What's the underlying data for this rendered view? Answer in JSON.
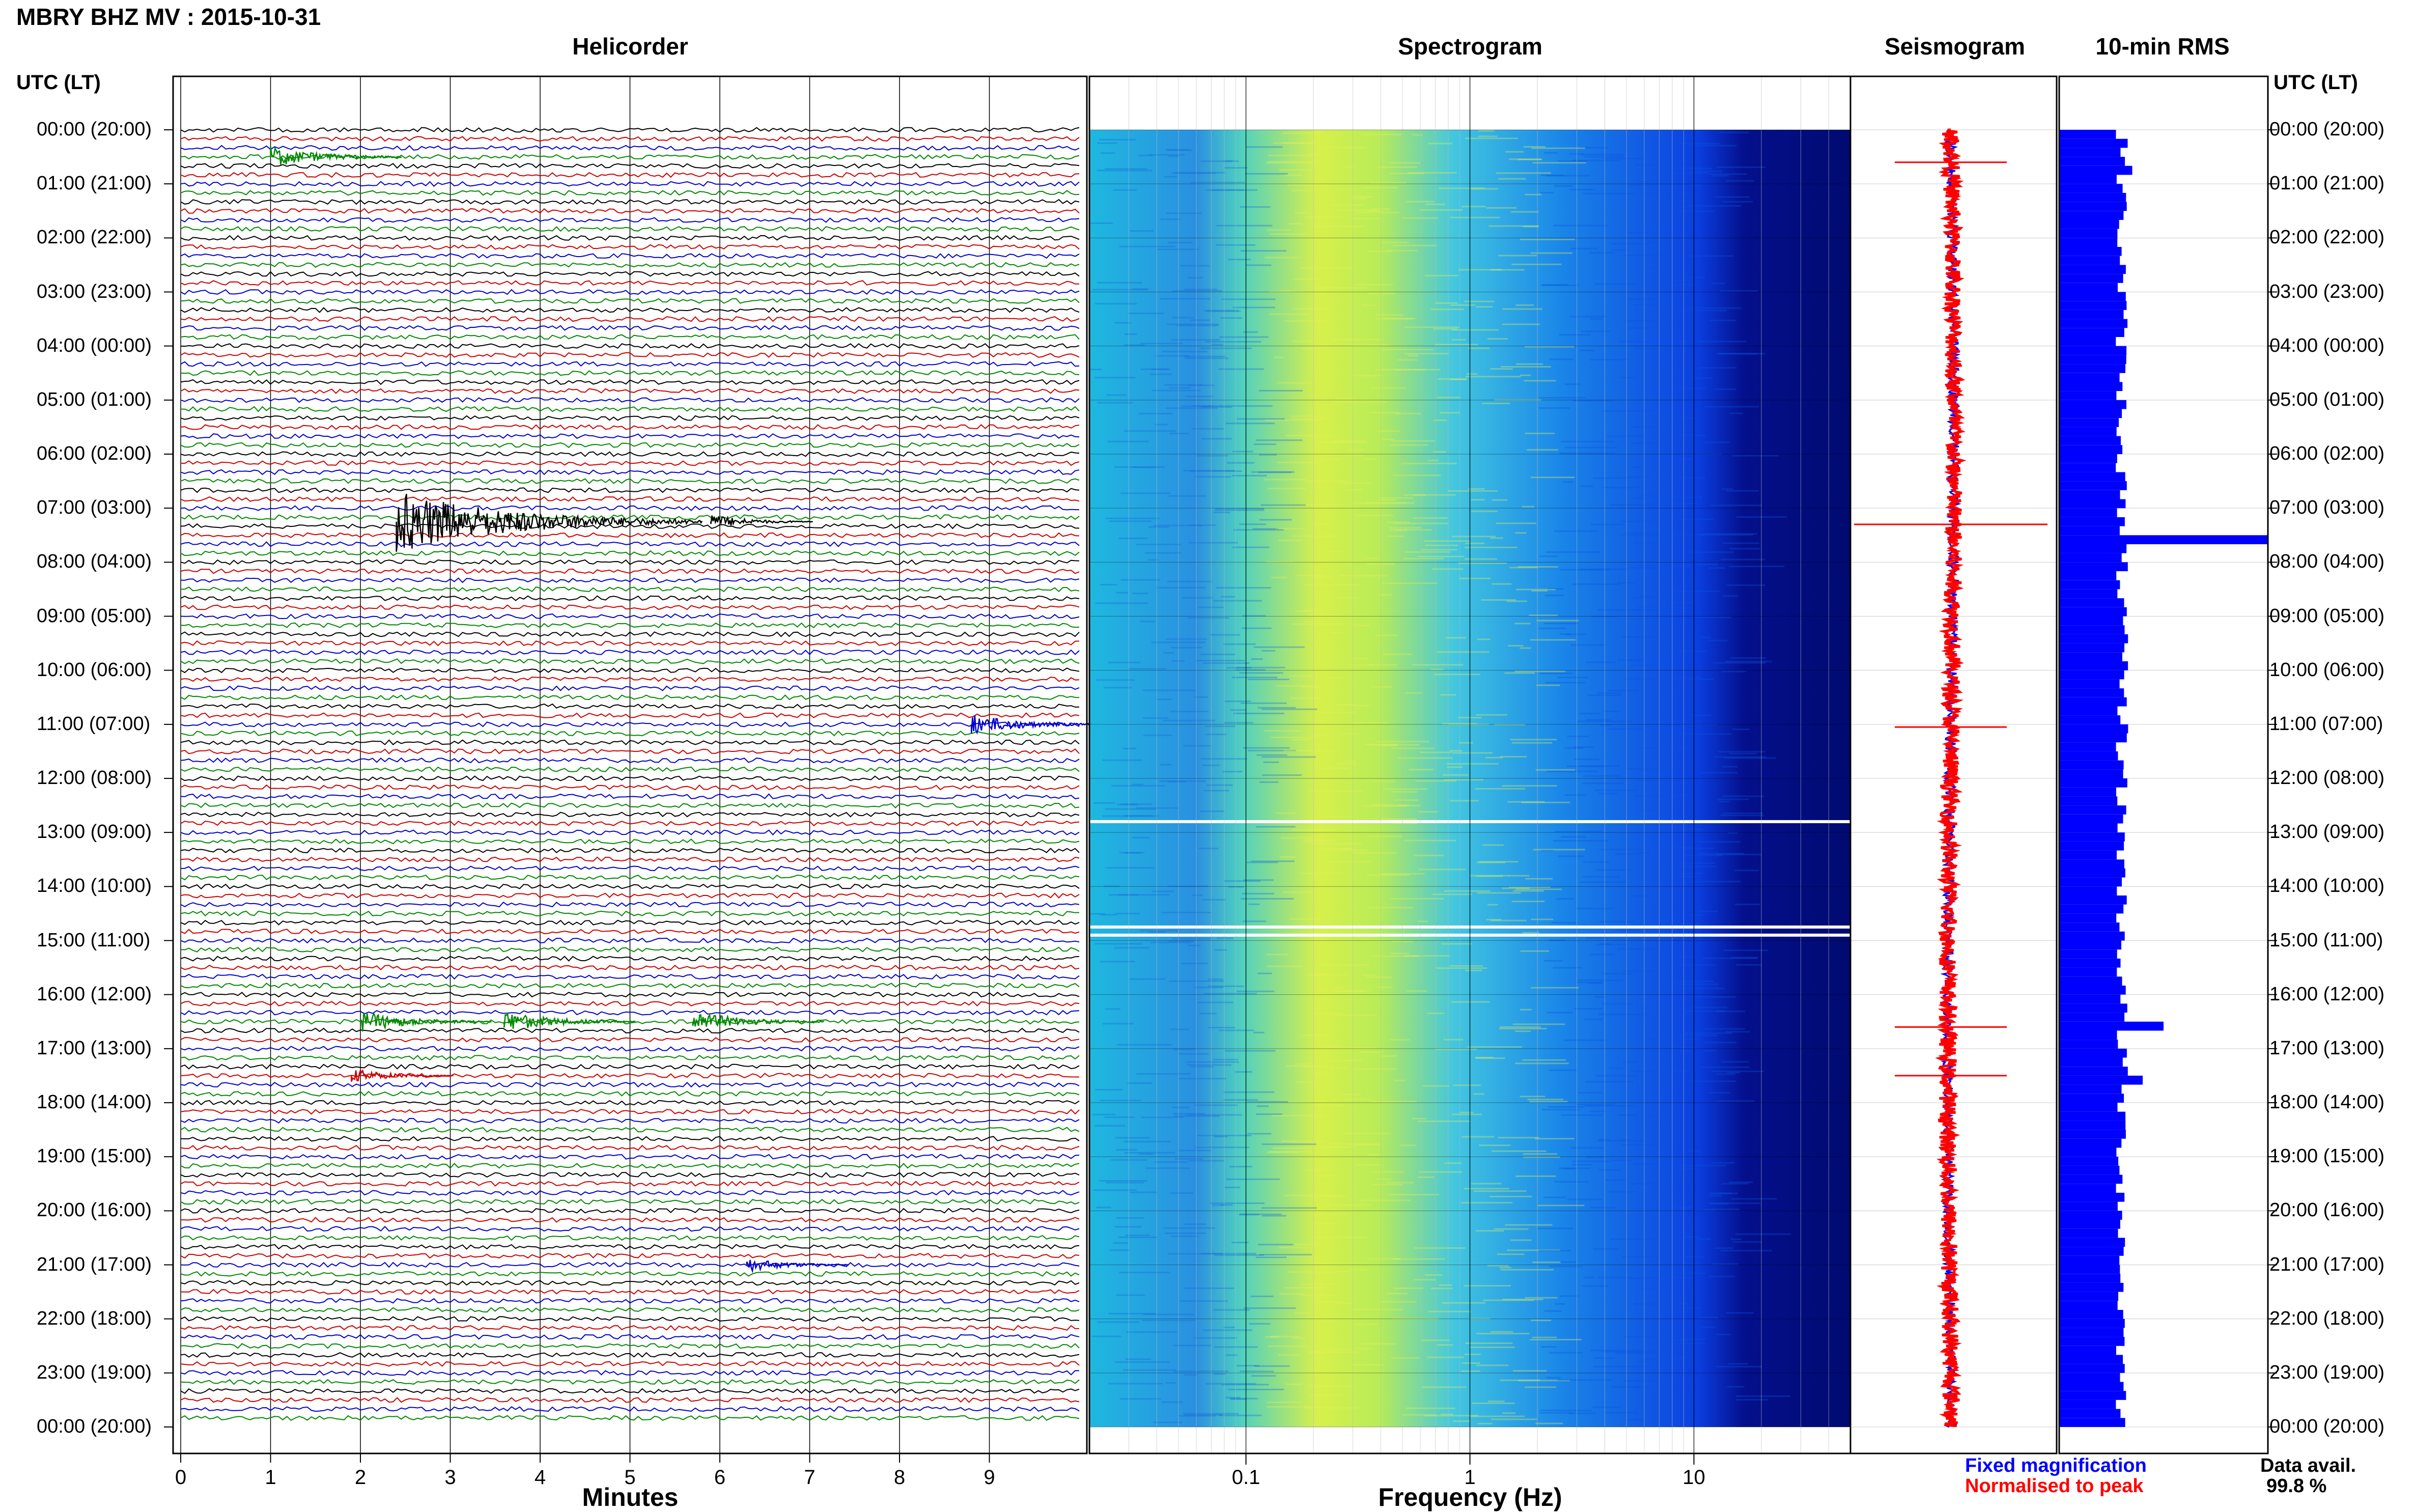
{
  "station_title": "MBRY BHZ MV : 2015-10-31",
  "panels": {
    "helicorder": "Helicorder",
    "spectrogram": "Spectrogram",
    "seismogram": "Seismogram",
    "rms": "10-min RMS"
  },
  "axis_titles": {
    "minutes": "Minutes",
    "frequency": "Frequency (Hz)"
  },
  "utc_header": "UTC (LT)",
  "time_labels": [
    "00:00 (20:00)",
    "01:00 (21:00)",
    "02:00 (22:00)",
    "03:00 (23:00)",
    "04:00 (00:00)",
    "05:00 (01:00)",
    "06:00 (02:00)",
    "07:00 (03:00)",
    "08:00 (04:00)",
    "09:00 (05:00)",
    "10:00 (06:00)",
    "11:00 (07:00)",
    "12:00 (08:00)",
    "13:00 (09:00)",
    "14:00 (10:00)",
    "15:00 (11:00)",
    "16:00 (12:00)",
    "17:00 (13:00)",
    "18:00 (14:00)",
    "19:00 (15:00)",
    "20:00 (16:00)",
    "21:00 (17:00)",
    "22:00 (18:00)",
    "23:00 (19:00)",
    "00:00 (20:00)"
  ],
  "legend": {
    "fixed": "Fixed magnification",
    "normalised": "Normalised to peak"
  },
  "data_availability": {
    "label": "Data avail.",
    "value": "99.8 %"
  },
  "colors": {
    "fixed": "#0000ff",
    "normalised": "#ff0000",
    "trace_cycle": [
      "#000000",
      "#cc0000",
      "#0000cc",
      "#008800"
    ]
  },
  "chart_data": {
    "type": "composite",
    "helicorder": {
      "xlabel": "Minutes",
      "x_ticks": [
        0,
        1,
        2,
        3,
        4,
        5,
        6,
        7,
        8,
        9
      ],
      "xlim": [
        0,
        10
      ],
      "lines_per_hour": 6,
      "hours": 24,
      "events": [
        {
          "hour": 0.5,
          "minute": 1.0,
          "amp": 3
        },
        {
          "hour": 7.25,
          "minute": 2.4,
          "amp": 9
        },
        {
          "hour": 7.25,
          "minute": 5.9,
          "amp": 2
        },
        {
          "hour": 11.0,
          "minute": 8.8,
          "amp": 3
        },
        {
          "hour": 16.5,
          "minute": 2.0,
          "amp": 3
        },
        {
          "hour": 16.5,
          "minute": 3.6,
          "amp": 3
        },
        {
          "hour": 16.5,
          "minute": 5.7,
          "amp": 3
        },
        {
          "hour": 17.5,
          "minute": 1.9,
          "amp": 2
        },
        {
          "hour": 21.0,
          "minute": 6.3,
          "amp": 2
        }
      ]
    },
    "spectrogram": {
      "xlabel": "Frequency (Hz)",
      "x_scale": "log",
      "xlim": [
        0.02,
        50
      ],
      "x_ticks": [
        0.1,
        1,
        10
      ],
      "gaps_hours": [
        12.8,
        14.75,
        14.9
      ]
    },
    "seismogram": {
      "spikes_hours": [
        0.6,
        7.3,
        11.05,
        16.6,
        17.5
      ]
    },
    "rms": {
      "bins_per_hour": 6,
      "baseline": 0.3,
      "spikes": [
        {
          "hour": 0.67,
          "value": 0.35
        },
        {
          "hour": 7.33,
          "value": 0.29
        },
        {
          "hour": 7.5,
          "value": 1.0
        },
        {
          "hour": 11.0,
          "value": 0.33
        },
        {
          "hour": 16.5,
          "value": 0.5
        },
        {
          "hour": 17.5,
          "value": 0.4
        }
      ]
    }
  }
}
